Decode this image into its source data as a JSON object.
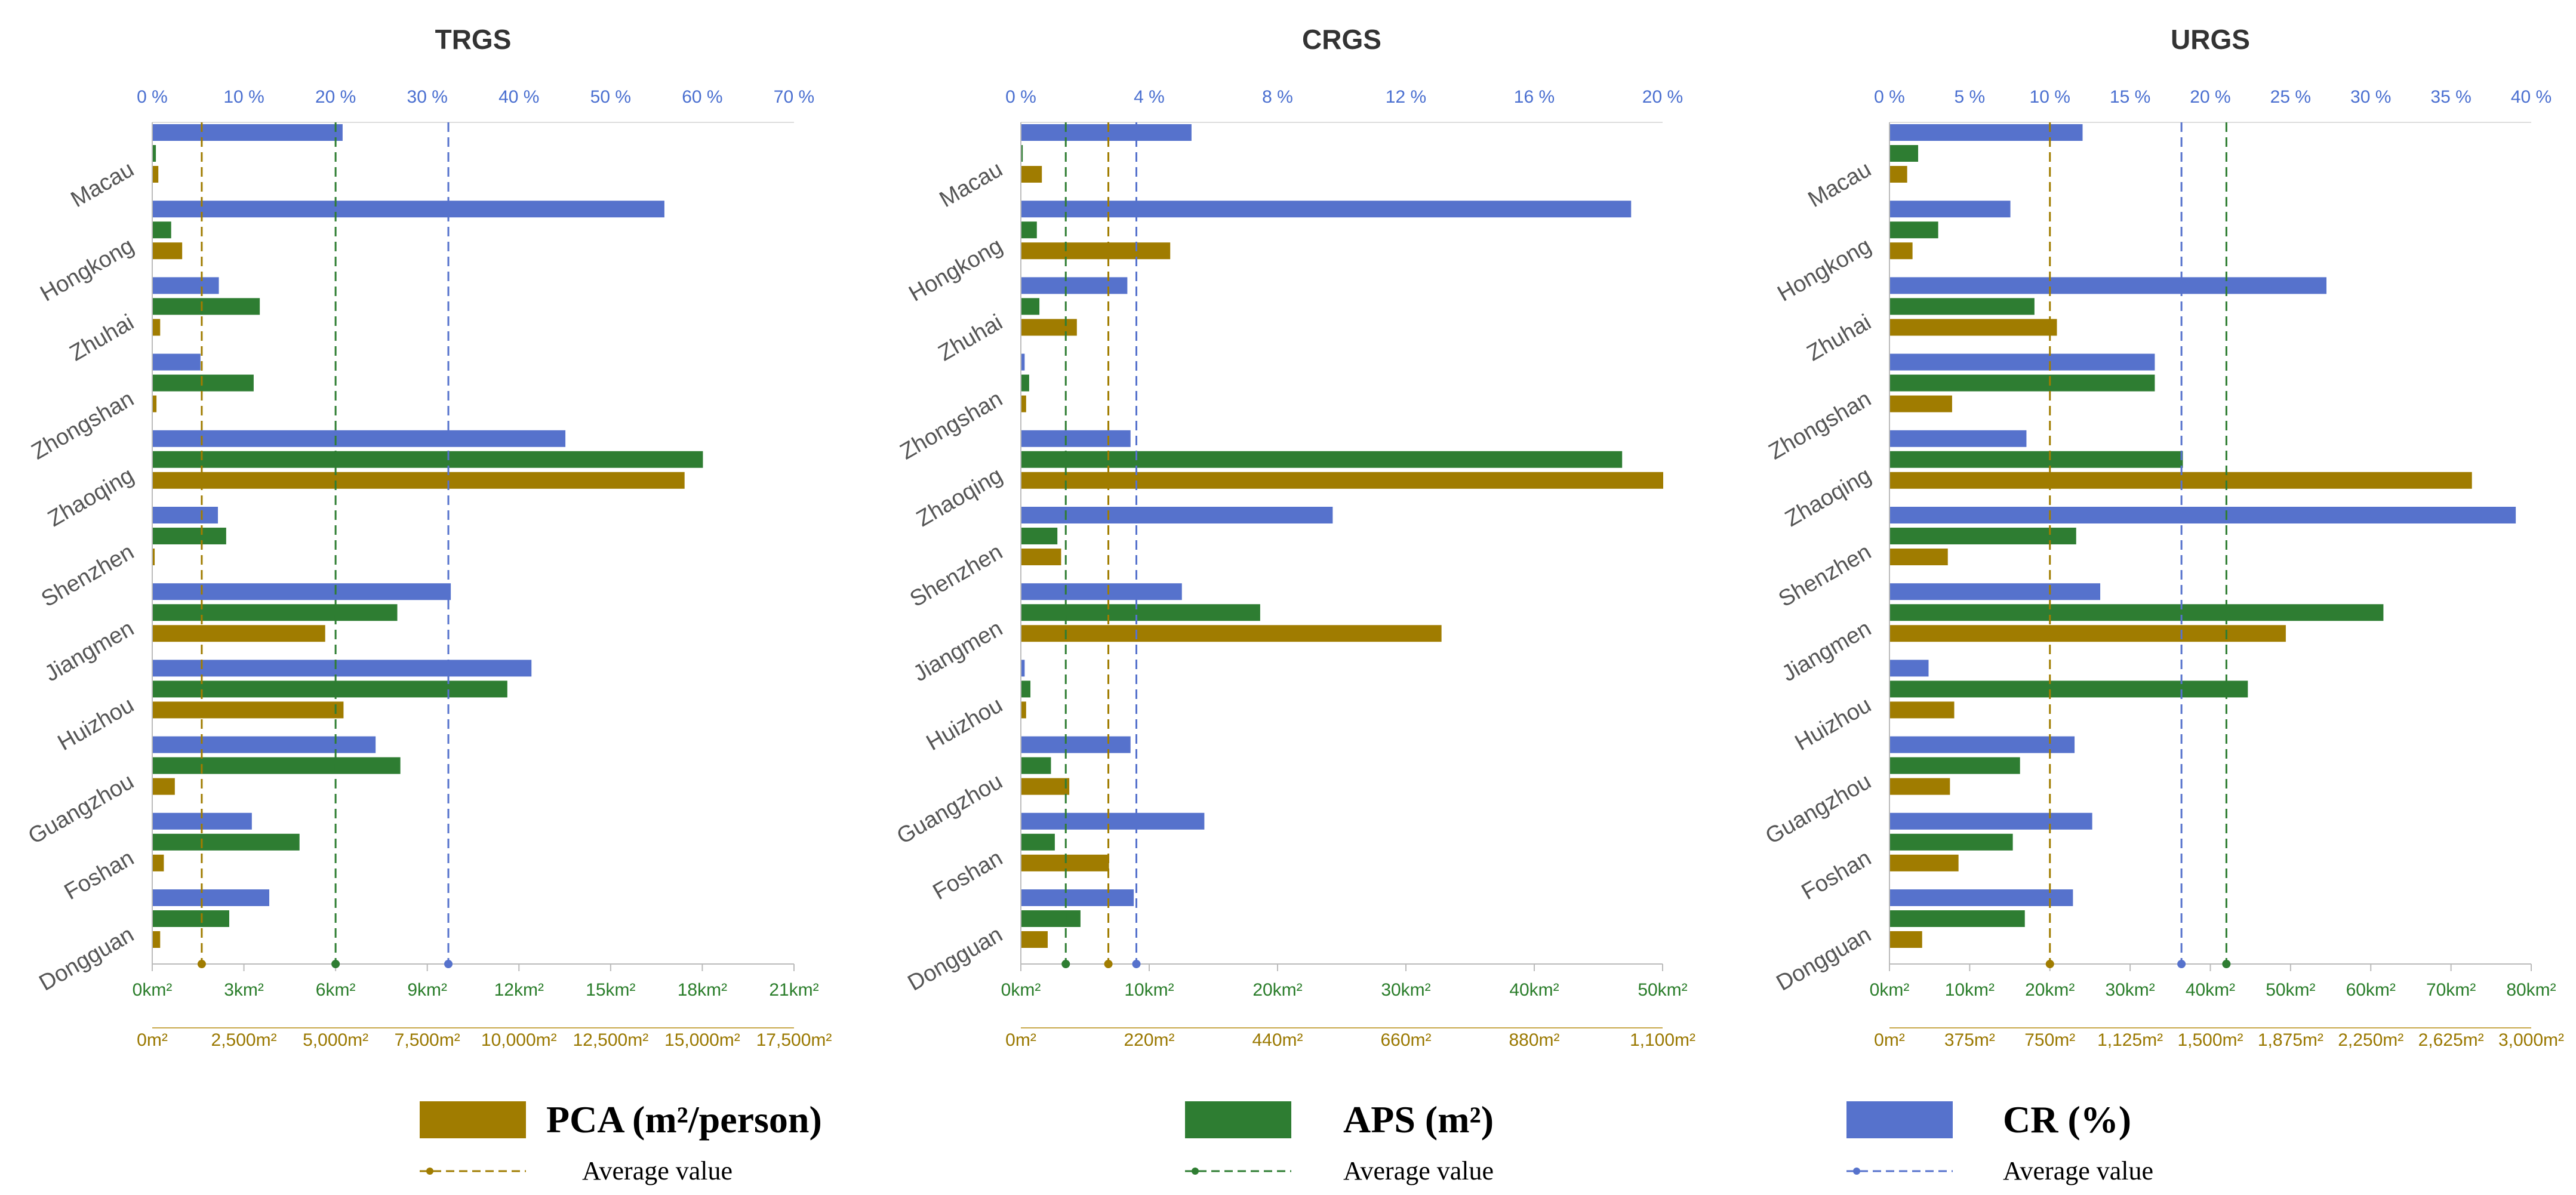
{
  "categories": [
    "Macau",
    "Hongkong",
    "Zhuhai",
    "Zhongshan",
    "Zhaoqing",
    "Shenzhen",
    "Jiangmen",
    "Huizhou",
    "Guangzhou",
    "Foshan",
    "Dongguan"
  ],
  "colors": {
    "cr": "#5672cc",
    "aps": "#2e7d32",
    "pca": "#a07c00",
    "cr_text": "#4a6fd0",
    "aps_text": "#2a7d2a",
    "pca_text": "#9a7800"
  },
  "legend": {
    "pca": {
      "label": "PCA (m²/person)"
    },
    "aps": {
      "label": "APS (m²)"
    },
    "cr": {
      "label": "CR (%)"
    },
    "avg": "Average value"
  },
  "chart_data": [
    {
      "type": "bar",
      "title": "TRGS",
      "categories": [
        "Macau",
        "Hongkong",
        "Zhuhai",
        "Zhongshan",
        "Zhaoqing",
        "Shenzhen",
        "Jiangmen",
        "Huizhou",
        "Guangzhou",
        "Foshan",
        "Dongguan"
      ],
      "axes": {
        "cr": {
          "range": [
            0,
            70
          ],
          "ticks": [
            "0 %",
            "10 %",
            "20 %",
            "30 %",
            "40 %",
            "50 %",
            "60 %",
            "70 %"
          ]
        },
        "aps": {
          "range": [
            0,
            21
          ],
          "ticks": [
            "0km²",
            "3km²",
            "6km²",
            "9km²",
            "12km²",
            "15km²",
            "18km²",
            "21km²"
          ]
        },
        "pca": {
          "range": [
            0,
            17500
          ],
          "ticks": [
            "0m²",
            "2,500m²",
            "5,000m²",
            "7,500m²",
            "10,000m²",
            "12,500m²",
            "15,000m²",
            "17,500m²"
          ]
        }
      },
      "series": [
        {
          "name": "CR (%)",
          "key": "cr",
          "values": [
            20.7,
            55.8,
            7.2,
            5.2,
            45.0,
            7.1,
            32.5,
            41.3,
            24.3,
            10.8,
            12.7
          ]
        },
        {
          "name": "APS (m²)",
          "key": "aps",
          "values": [
            0.1,
            0.6,
            3.5,
            3.3,
            18.0,
            2.4,
            8.0,
            11.6,
            8.1,
            4.8,
            2.5
          ]
        },
        {
          "name": "PCA (m²/person)",
          "key": "pca",
          "values": [
            150,
            800,
            200,
            100,
            14500,
            50,
            4700,
            5200,
            600,
            300,
            200
          ]
        }
      ],
      "averages": {
        "cr": 32.3,
        "aps": 6.0,
        "pca": 1350
      }
    },
    {
      "type": "bar",
      "title": "CRGS",
      "categories": [
        "Macau",
        "Hongkong",
        "Zhuhai",
        "Zhongshan",
        "Zhaoqing",
        "Shenzhen",
        "Jiangmen",
        "Huizhou",
        "Guangzhou",
        "Foshan",
        "Dongguan"
      ],
      "axes": {
        "cr": {
          "range": [
            0,
            20
          ],
          "ticks": [
            "0 %",
            "4 %",
            "8 %",
            "12 %",
            "16 %",
            "20 %"
          ]
        },
        "aps": {
          "range": [
            0,
            50
          ],
          "ticks": [
            "0km²",
            "10km²",
            "20km²",
            "30km²",
            "40km²",
            "50km²"
          ]
        },
        "pca": {
          "range": [
            0,
            1100
          ],
          "ticks": [
            "0m²",
            "220m²",
            "440m²",
            "660m²",
            "880m²",
            "1,100m²"
          ]
        }
      },
      "series": [
        {
          "name": "CR (%)",
          "key": "cr",
          "values": [
            5.3,
            19.0,
            3.3,
            0.1,
            3.4,
            9.7,
            5.0,
            0.1,
            3.4,
            5.7,
            3.5
          ]
        },
        {
          "name": "APS (m²)",
          "key": "aps",
          "values": [
            0.1,
            1.2,
            1.4,
            0.6,
            46.8,
            2.8,
            18.6,
            0.7,
            2.3,
            2.6,
            4.6
          ]
        },
        {
          "name": "PCA (m²/person)",
          "key": "pca",
          "values": [
            35,
            255,
            95,
            8,
            1100,
            68,
            720,
            8,
            82,
            150,
            45
          ]
        }
      ],
      "averages": {
        "cr": 3.6,
        "aps": 3.5,
        "pca": 150
      }
    },
    {
      "type": "bar",
      "title": "URGS",
      "categories": [
        "Macau",
        "Hongkong",
        "Zhuhai",
        "Zhongshan",
        "Zhaoqing",
        "Shenzhen",
        "Jiangmen",
        "Huizhou",
        "Guangzhou",
        "Foshan",
        "Dongguan"
      ],
      "axes": {
        "cr": {
          "range": [
            0,
            40
          ],
          "ticks": [
            "0 %",
            "5 %",
            "10 %",
            "15 %",
            "20 %",
            "25 %",
            "30 %",
            "35 %",
            "40 %"
          ]
        },
        "aps": {
          "range": [
            0,
            80
          ],
          "ticks": [
            "0km²",
            "10km²",
            "20km²",
            "30km²",
            "40km²",
            "50km²",
            "60km²",
            "70km²",
            "80km²"
          ]
        },
        "pca": {
          "range": [
            0,
            3000
          ],
          "ticks": [
            "0m²",
            "375m²",
            "750m²",
            "1,125m²",
            "1,500m²",
            "1,875m²",
            "2,250m²",
            "2,625m²",
            "3,000m²"
          ]
        }
      },
      "series": [
        {
          "name": "CR (%)",
          "key": "cr",
          "values": [
            12.0,
            7.5,
            27.2,
            16.5,
            8.5,
            39.0,
            13.1,
            2.4,
            11.5,
            12.6,
            11.4
          ]
        },
        {
          "name": "APS (m²)",
          "key": "aps",
          "values": [
            3.5,
            6.0,
            18.0,
            33.0,
            36.5,
            23.2,
            61.5,
            44.6,
            16.2,
            15.3,
            16.8
          ]
        },
        {
          "name": "PCA (m²/person)",
          "key": "pca",
          "values": [
            80,
            105,
            780,
            290,
            2720,
            270,
            1850,
            300,
            280,
            320,
            150
          ]
        }
      ],
      "averages": {
        "cr": 18.2,
        "aps": 42.0,
        "pca": 750
      }
    }
  ]
}
